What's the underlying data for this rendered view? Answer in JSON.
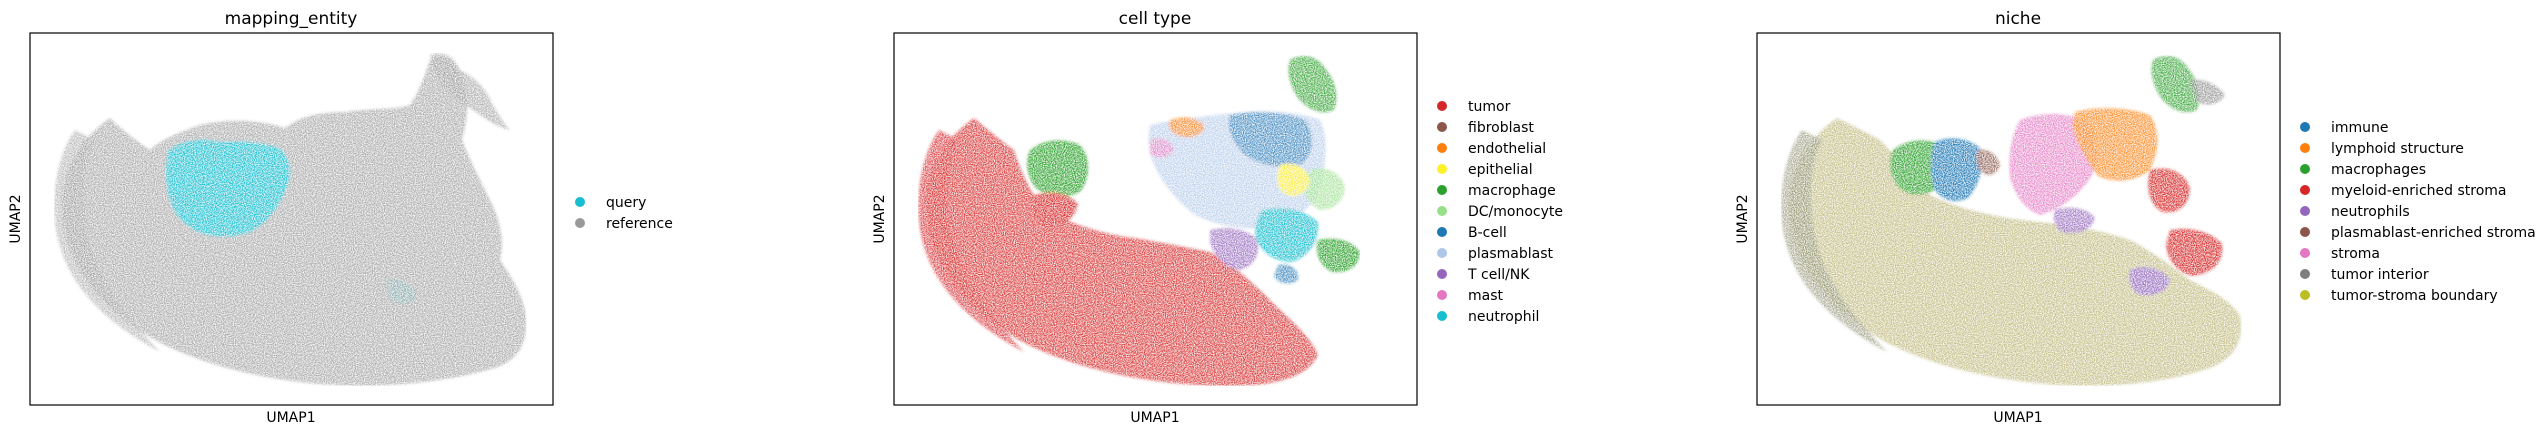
{
  "chart_data": [
    {
      "type": "scatter",
      "title": "mapping_entity",
      "xlabel": "UMAP1",
      "ylabel": "UMAP2",
      "grid": false,
      "legend_placement": "right",
      "series": [
        {
          "name": "query",
          "color": "#17becf"
        },
        {
          "name": "reference",
          "color": "#999999"
        }
      ]
    },
    {
      "type": "scatter",
      "title": "cell type",
      "xlabel": "UMAP1",
      "ylabel": "UMAP2",
      "grid": false,
      "legend_placement": "right",
      "series": [
        {
          "name": "tumor",
          "color": "#d62728"
        },
        {
          "name": "fibroblast",
          "color": "#8c564b"
        },
        {
          "name": "endothelial",
          "color": "#ff7f0e"
        },
        {
          "name": "epithelial",
          "color": "#fff02a"
        },
        {
          "name": "macrophage",
          "color": "#2ca02c"
        },
        {
          "name": "DC/monocyte",
          "color": "#98df8a"
        },
        {
          "name": "B-cell",
          "color": "#1f77b4"
        },
        {
          "name": "plasmablast",
          "color": "#aec7e8"
        },
        {
          "name": "T cell/NK",
          "color": "#9467bd"
        },
        {
          "name": "mast",
          "color": "#e377c2"
        },
        {
          "name": "neutrophil",
          "color": "#17becf"
        }
      ]
    },
    {
      "type": "scatter",
      "title": "niche",
      "xlabel": "UMAP1",
      "ylabel": "UMAP2",
      "grid": false,
      "legend_placement": "right",
      "series": [
        {
          "name": "immune",
          "color": "#1f77b4"
        },
        {
          "name": "lymphoid structure",
          "color": "#ff7f0e"
        },
        {
          "name": "macrophages",
          "color": "#2ca02c"
        },
        {
          "name": "myeloid-enriched stroma",
          "color": "#d62728"
        },
        {
          "name": "neutrophils",
          "color": "#9467bd"
        },
        {
          "name": "plasmablast-enriched stroma",
          "color": "#8c564b"
        },
        {
          "name": "stroma",
          "color": "#e377c2"
        },
        {
          "name": "tumor interior",
          "color": "#7f7f7f"
        },
        {
          "name": "tumor-stroma boundary",
          "color": "#bcbd22"
        }
      ]
    }
  ]
}
